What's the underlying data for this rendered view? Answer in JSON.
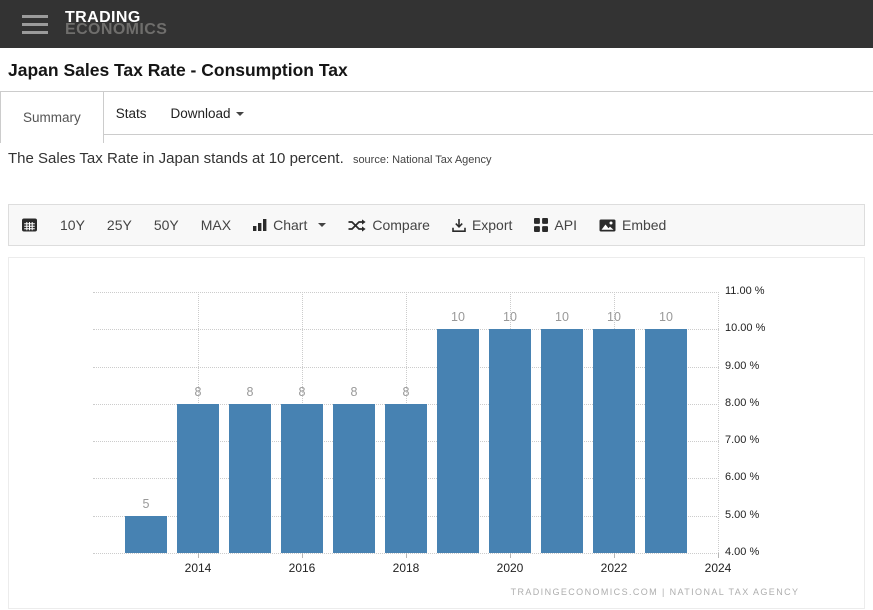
{
  "header": {
    "logo_line1": "TRADING",
    "logo_line2": "ECONOMICS"
  },
  "page": {
    "title": "Japan Sales Tax Rate - Consumption Tax",
    "summary_text": "The Sales Tax Rate in Japan stands at 10 percent.",
    "source_text": "source: National Tax Agency"
  },
  "tabs": [
    {
      "label": "Summary",
      "active": true
    },
    {
      "label": "Stats",
      "active": false
    },
    {
      "label": "Download",
      "active": false,
      "has_dropdown": true
    }
  ],
  "toolbar": {
    "items": [
      {
        "icon": "calendar-icon",
        "label": ""
      },
      {
        "label": "10Y"
      },
      {
        "label": "25Y"
      },
      {
        "label": "50Y"
      },
      {
        "label": "MAX"
      },
      {
        "icon": "bar-chart-icon",
        "label": "Chart",
        "dropdown": true
      },
      {
        "icon": "compare-shuffle-icon",
        "label": "Compare"
      },
      {
        "icon": "download-icon",
        "label": "Export"
      },
      {
        "icon": "api-grid-icon",
        "label": "API"
      },
      {
        "icon": "embed-image-icon",
        "label": "Embed"
      }
    ]
  },
  "chart_data": {
    "type": "bar",
    "x": [
      2013,
      2014,
      2015,
      2016,
      2017,
      2018,
      2019,
      2020,
      2021,
      2022,
      2023
    ],
    "values": [
      5,
      8,
      8,
      8,
      8,
      8,
      10,
      10,
      10,
      10,
      10
    ],
    "bar_labels": [
      "5",
      "8",
      "8",
      "8",
      "8",
      "8",
      "10",
      "10",
      "10",
      "10",
      "10"
    ],
    "ylim": [
      4,
      11
    ],
    "yticks": [
      {
        "value": 11,
        "label": "11.00 %"
      },
      {
        "value": 10,
        "label": "10.00 %"
      },
      {
        "value": 9,
        "label": "9.00 %"
      },
      {
        "value": 8,
        "label": "8.00 %"
      },
      {
        "value": 7,
        "label": "7.00 %"
      },
      {
        "value": 6,
        "label": "6.00 %"
      },
      {
        "value": 5,
        "label": "5.00 %"
      },
      {
        "value": 4,
        "label": "4.00 %"
      }
    ],
    "xticks": [
      {
        "label": "2014",
        "slot": 1
      },
      {
        "label": "2016",
        "slot": 3
      },
      {
        "label": "2018",
        "slot": 5
      },
      {
        "label": "2020",
        "slot": 7
      },
      {
        "label": "2022",
        "slot": 9
      },
      {
        "label": "2024",
        "slot": 11
      }
    ],
    "bar_color": "#4782b2",
    "grid": "dotted",
    "legend": "none",
    "attribution": "TRADINGECONOMICS.COM  |  NATIONAL TAX AGENCY"
  },
  "colors": {
    "header_bg": "#333333",
    "bar": "#4782b2",
    "border": "#cccccc",
    "toolbar_bg": "#f8f8f8"
  }
}
